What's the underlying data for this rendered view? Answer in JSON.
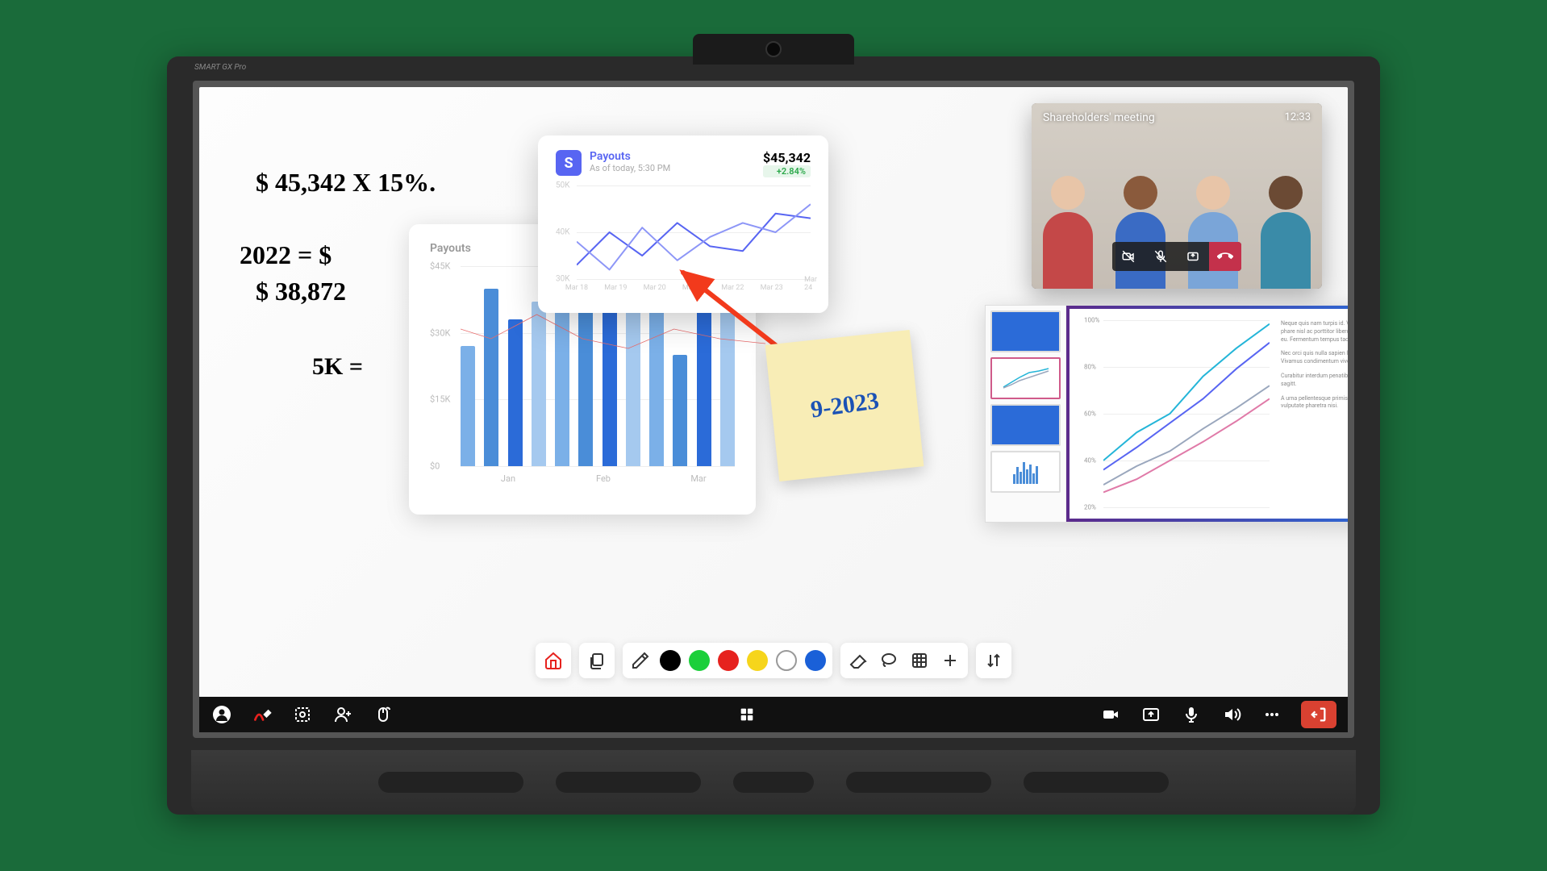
{
  "device": {
    "brand": "SMART GX Pro"
  },
  "ink": {
    "line1": "$ 45,342  X  15%.",
    "line2": "2022  =    $",
    "line3": "$ 38,872",
    "line4": "5K  ="
  },
  "bar_chart": {
    "type": "bar",
    "title": "Payouts",
    "y_ticks": [
      "$45K",
      "$30K",
      "$15K",
      "$0"
    ],
    "y_max": 45,
    "x_groups": [
      "Jan",
      "Feb",
      "Mar"
    ],
    "bars": [
      {
        "v": 27,
        "c": "#7bb0e8"
      },
      {
        "v": 40,
        "c": "#4a8dd8"
      },
      {
        "v": 33,
        "c": "#2b6bd8"
      },
      {
        "v": 37,
        "c": "#a5c9ef"
      },
      {
        "v": 44,
        "c": "#7bb0e8"
      },
      {
        "v": 35,
        "c": "#4a8dd8"
      },
      {
        "v": 38,
        "c": "#2b6bd8"
      },
      {
        "v": 41,
        "c": "#a5c9ef"
      },
      {
        "v": 38,
        "c": "#7bb0e8"
      },
      {
        "v": 25,
        "c": "#4a8dd8"
      },
      {
        "v": 42,
        "c": "#2b6bd8"
      },
      {
        "v": 36,
        "c": "#a5c9ef"
      }
    ],
    "overlay_line": {
      "color": "#e86b6b",
      "points": [
        [
          0,
          32
        ],
        [
          10,
          30
        ],
        [
          25,
          35
        ],
        [
          40,
          30
        ],
        [
          55,
          28
        ],
        [
          70,
          32
        ],
        [
          85,
          30
        ],
        [
          100,
          29
        ]
      ]
    },
    "background": "#ffffff",
    "grid_color": "#eeeeee",
    "title_color": "#999999",
    "label_color": "#bbbbbb",
    "title_fontsize": 14,
    "label_fontsize": 11
  },
  "line_chart": {
    "type": "line",
    "logo_letter": "S",
    "logo_bg": "#5865f2",
    "title": "Payouts",
    "subtitle": "As of today, 5:30 PM",
    "value": "$45,342",
    "delta": "+2.84%",
    "delta_color": "#2ba84a",
    "delta_bg": "#e7f6eb",
    "y_ticks": [
      "50K",
      "40K",
      "30K"
    ],
    "y_min": 30,
    "y_max": 50,
    "x_labels": [
      "Mar 18",
      "Mar 19",
      "Mar 20",
      "Mar 21",
      "Mar 22",
      "Mar 23",
      "Mar 24"
    ],
    "series": [
      {
        "color": "#5865f2",
        "width": 2,
        "points": [
          [
            0,
            33
          ],
          [
            14,
            40
          ],
          [
            28,
            35
          ],
          [
            43,
            42
          ],
          [
            57,
            37
          ],
          [
            71,
            36
          ],
          [
            85,
            44
          ],
          [
            100,
            43
          ]
        ]
      },
      {
        "color": "#8d96f7",
        "width": 2,
        "points": [
          [
            0,
            38
          ],
          [
            14,
            32
          ],
          [
            28,
            41
          ],
          [
            43,
            34
          ],
          [
            57,
            39
          ],
          [
            71,
            42
          ],
          [
            85,
            40
          ],
          [
            100,
            46
          ]
        ]
      }
    ],
    "background": "#ffffff",
    "grid_color": "#eeeeee"
  },
  "arrow": {
    "color": "#f23a1c",
    "stroke_width": 6
  },
  "sticky": {
    "text": "9-2023",
    "bg": "#f8edb6",
    "ink": "#1b52b5"
  },
  "call": {
    "title": "Shareholders' meeting",
    "time": "12:33",
    "buttons": [
      "camera-off-icon",
      "mic-off-icon",
      "share-icon",
      "hangup-icon"
    ],
    "end_bg": "#c4314b",
    "people": [
      {
        "skin": "#e8c5a8",
        "shirt": "#c44848"
      },
      {
        "skin": "#8a5a3c",
        "shirt": "#3a6bc4"
      },
      {
        "skin": "#e8c5a8",
        "shirt": "#7aa5d8"
      },
      {
        "skin": "#6b4a34",
        "shirt": "#3a8ba8"
      }
    ]
  },
  "presentation": {
    "y_ticks": [
      "100%",
      "80%",
      "60%",
      "40%",
      "20%"
    ],
    "series": [
      {
        "color": "#24b5d8",
        "points": [
          [
            0,
            25
          ],
          [
            20,
            40
          ],
          [
            40,
            50
          ],
          [
            60,
            70
          ],
          [
            80,
            85
          ],
          [
            100,
            98
          ]
        ]
      },
      {
        "color": "#5865f2",
        "points": [
          [
            0,
            20
          ],
          [
            20,
            32
          ],
          [
            40,
            45
          ],
          [
            60,
            58
          ],
          [
            80,
            74
          ],
          [
            100,
            88
          ]
        ]
      },
      {
        "color": "#9aa7bd",
        "points": [
          [
            0,
            12
          ],
          [
            20,
            22
          ],
          [
            40,
            30
          ],
          [
            60,
            42
          ],
          [
            80,
            53
          ],
          [
            100,
            65
          ]
        ]
      },
      {
        "color": "#e07aa8",
        "points": [
          [
            0,
            8
          ],
          [
            20,
            15
          ],
          [
            40,
            25
          ],
          [
            60,
            35
          ],
          [
            80,
            46
          ],
          [
            100,
            58
          ]
        ]
      }
    ],
    "border_gradient": [
      "#5b2b8c",
      "#2b6bd8"
    ],
    "text_blocks": [
      "Neque quis nam turpis id. Vitae phare nisl ac porttitor libero nisl ac eu. Fermentum tempus taciti.",
      "Nec orci quis nulla sapien lorem. Vivamus condimentum viverra.",
      "Curabitur interdum penatibus sagitt.",
      "A urna pellentesque primis vulputate pharetra nisi."
    ],
    "thumb_title_bg": "#2b6bd8",
    "thumb_title_text_color": "#ffffff"
  },
  "whiteboard_toolbar": {
    "pen_colors": [
      "#000000",
      "#1bcf3a",
      "#e6221e",
      "#f6d51b",
      "#ffffff",
      "#1a60d8"
    ],
    "home_color": "#e6221e"
  },
  "taskbar": {
    "exit_bg": "#d94131",
    "pen_accent": "#e6221e"
  }
}
